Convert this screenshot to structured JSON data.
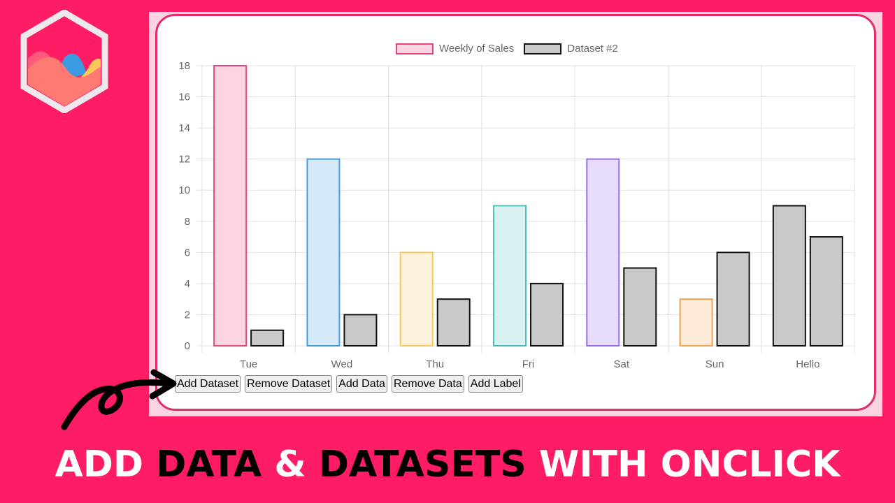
{
  "headline": {
    "parts": [
      {
        "text": "ADD ",
        "color": "white"
      },
      {
        "text": "DATA ",
        "color": "black"
      },
      {
        "text": "& ",
        "color": "white"
      },
      {
        "text": "DATASETS ",
        "color": "black"
      },
      {
        "text": "WITH ONCLICK",
        "color": "white"
      }
    ]
  },
  "logo": {
    "icon": "chartjs-logo-icon"
  },
  "legend": {
    "items": [
      {
        "label": "Weekly of Sales",
        "fill": "#fdd5e2",
        "border": "#e8457b"
      },
      {
        "label": "Dataset #2",
        "fill": "#c9c9c9",
        "border": "#111111"
      }
    ]
  },
  "buttons": {
    "add_dataset": "Add Dataset",
    "remove_dataset": "Remove Dataset",
    "add_data": "Add Data",
    "remove_data": "Remove Data",
    "add_label": "Add Label"
  },
  "chart_data": {
    "type": "bar",
    "title": "",
    "xlabel": "",
    "ylabel": "",
    "ylim": [
      0,
      18
    ],
    "yticks": [
      0,
      2,
      4,
      6,
      8,
      10,
      12,
      14,
      16,
      18
    ],
    "grid": true,
    "legend_position": "top",
    "categories": [
      "Tue",
      "Wed",
      "Thu",
      "Fri",
      "Sat",
      "Sun",
      "Hello"
    ],
    "series": [
      {
        "name": "Weekly of Sales",
        "values": [
          18,
          12,
          6,
          9,
          12,
          3,
          9
        ],
        "fills": [
          "#fdd5e2",
          "#d6e9f8",
          "#fef2dc",
          "#d9f1f1",
          "#e7dcfe",
          "#feebd9",
          "#c9c9c9"
        ],
        "borders": [
          "#e8457b",
          "#3fa0e0",
          "#f5c95b",
          "#4fbebe",
          "#9a6cf0",
          "#f5a24a",
          "#111111"
        ]
      },
      {
        "name": "Dataset #2",
        "values": [
          1,
          2,
          3,
          4,
          5,
          6,
          7
        ],
        "fills": [
          "#c9c9c9"
        ],
        "borders": [
          "#111111"
        ]
      }
    ]
  }
}
